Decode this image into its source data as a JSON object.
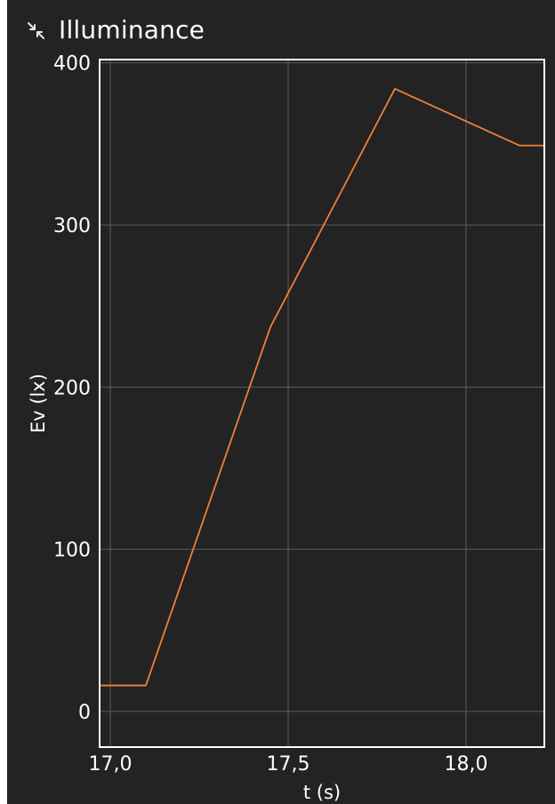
{
  "header": {
    "title": "Illuminance",
    "collapse_icon": "collapse-arrows-icon"
  },
  "colors": {
    "background": "#232323",
    "line": "#f07f3a",
    "frame": "#ffffff",
    "grid": "#5c5c5c",
    "text": "#ffffff"
  },
  "chart_data": {
    "type": "line",
    "title": "Illuminance",
    "xlabel": "t (s)",
    "ylabel": "Ev (lx)",
    "xlim": [
      16.97,
      18.22
    ],
    "ylim": [
      -22,
      402
    ],
    "xticks": [
      17.0,
      17.5,
      18.0
    ],
    "xtick_labels": [
      "17,0",
      "17,5",
      "18,0"
    ],
    "yticks": [
      0,
      100,
      200,
      300,
      400
    ],
    "ytick_labels": [
      "0",
      "100",
      "200",
      "300",
      "400"
    ],
    "grid": true,
    "series": [
      {
        "x": [
          16.97,
          17.1,
          17.45,
          17.8,
          18.15,
          18.22
        ],
        "y": [
          16,
          16,
          237,
          384,
          349,
          349
        ]
      }
    ]
  }
}
